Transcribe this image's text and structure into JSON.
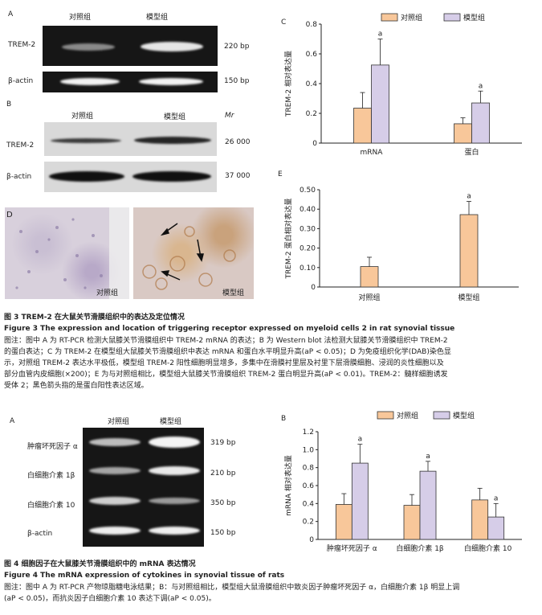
{
  "colors": {
    "control": "#F8C79A",
    "model": "#D6CDE8",
    "bar_stroke": "#333333",
    "gel_bg": "#161616",
    "band": "#EEEEEE"
  },
  "fig3": {
    "panelA": {
      "label": "A",
      "lanes": [
        "对照组",
        "模型组"
      ],
      "rows": [
        {
          "name": "TREM-2",
          "size": "220 bp"
        },
        {
          "name": "β-actin",
          "size": "150 bp"
        }
      ]
    },
    "panelB": {
      "label": "B",
      "lanes": [
        "对照组",
        "模型组"
      ],
      "unit": "Mr",
      "rows": [
        {
          "name": "TREM-2",
          "size": "26 000"
        },
        {
          "name": "β-actin",
          "size": "37 000"
        }
      ]
    },
    "panelD": {
      "label": "D",
      "left_label": "对照组",
      "right_label": "模型组"
    },
    "caption": {
      "title_cn": "图 3   TREM-2 在大鼠关节滑膜组织中的表达及定位情况",
      "title_en": "Figure 3   The expression and location of triggering receptor expressed on myeloid cells 2 in rat synovial tissue",
      "lines": [
        "图注：图中 A 为 RT-PCR 检测大鼠膝关节滑膜组织中 TREM-2 mRNA 的表达；B 为 Western blot 法检测大鼠膝关节滑膜组织中 TREM-2",
        "的蛋白表达；C 为 TREM-2 在模型组大鼠膝关节滑膜组织中表达 mRNA 和蛋白水平明显升高(aP < 0.05)；D 为免疫组织化学(DAB)染色显",
        "示，对照组 TREM-2 表达水平极低，模型组 TREM-2 阳性细胞明显增多，多集中在滑膜衬里层及衬里下层滑膜细胞、浸润的炎性细胞以及",
        "部分血管内皮细胞(×200)；E 为与对照组相比，模型组大鼠膝关节滑膜组织 TREM-2 蛋白明显升高(aP < 0.01)。TREM-2：髓样细胞诱发",
        "受体 2；黑色箭头指的是蛋白阳性表达区域。"
      ]
    }
  },
  "fig4": {
    "panelA": {
      "label": "A",
      "lanes": [
        "对照组",
        "模型组"
      ],
      "rows": [
        {
          "name": "肿瘤坏死因子 α",
          "size": "319 bp"
        },
        {
          "name": "白细胞介素 1β",
          "size": "210 bp"
        },
        {
          "name": "白细胞介素 10",
          "size": "350 bp"
        },
        {
          "name": "β-actin",
          "size": "150 bp"
        }
      ]
    },
    "caption": {
      "title_cn": "图 4   细胞因子在大鼠膝关节滑膜组织中的 mRNA 表达情况",
      "title_en": "Figure 4   The mRNA expression of cytokines in synovial tissue of rats",
      "lines": [
        "图注：图中 A 为 RT-PCR 产物琼脂糖电泳结果；B：与对照组相比，模型组大鼠滑膜组织中致炎因子肿瘤坏死因子 α，白细胞介素 1β 明显上调",
        "(aP < 0.05)，而抗炎因子白细胞介素 10 表达下调(aP < 0.05)。"
      ]
    }
  },
  "chart_data": [
    {
      "type": "bar",
      "panel": "C",
      "categories": [
        "mRNA",
        "蛋白"
      ],
      "series": [
        {
          "name": "对照组",
          "values": [
            0.235,
            0.13
          ],
          "errors": [
            0.105,
            0.04
          ]
        },
        {
          "name": "模型组",
          "values": [
            0.525,
            0.27
          ],
          "errors": [
            0.175,
            0.08
          ]
        }
      ],
      "significance": [
        [
          "",
          "a"
        ],
        [
          "",
          "a"
        ]
      ],
      "ylabel": "TREM-2 相对表达量",
      "ylim": [
        0,
        0.8
      ],
      "yticks": [
        "0",
        "0.2",
        "0.4",
        "0.6",
        "0.8"
      ],
      "legend": "top"
    },
    {
      "type": "bar",
      "panel": "E",
      "categories": [
        "对照组",
        "模型组"
      ],
      "values": [
        0.105,
        0.372
      ],
      "errors": [
        0.048,
        0.068
      ],
      "significance": [
        "",
        "a"
      ],
      "ylabel": "TREM-2 蛋白相对表达量",
      "ylim": [
        0,
        0.5
      ],
      "yticks": [
        "0",
        "0.10",
        "0.20",
        "0.30",
        "0.40",
        "0.50"
      ],
      "grid": false
    },
    {
      "type": "bar",
      "panel": "B",
      "categories": [
        "肿瘤坏死因子 α",
        "白细胞介素 1β",
        "白细胞介素 10"
      ],
      "series": [
        {
          "name": "对照组",
          "values": [
            0.39,
            0.38,
            0.44
          ],
          "errors": [
            0.12,
            0.12,
            0.13
          ]
        },
        {
          "name": "模型组",
          "values": [
            0.85,
            0.76,
            0.25
          ],
          "errors": [
            0.21,
            0.11,
            0.15
          ]
        }
      ],
      "significance": [
        [
          "",
          "a"
        ],
        [
          "",
          "a"
        ],
        [
          "",
          "a"
        ]
      ],
      "ylabel": "mRNA 相对表达量",
      "ylim": [
        0,
        1.2
      ],
      "yticks": [
        "0",
        "0.2",
        "0.4",
        "0.6",
        "0.8",
        "1.0",
        "1.2"
      ],
      "legend": "top"
    }
  ]
}
